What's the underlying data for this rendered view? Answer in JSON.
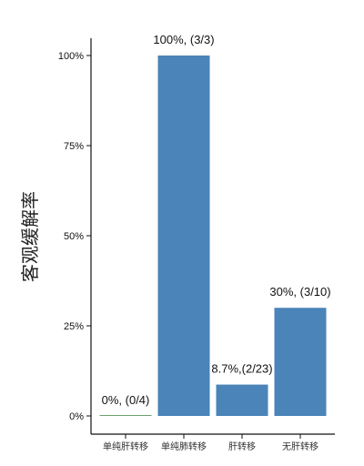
{
  "chart_data": {
    "type": "bar",
    "categories": [
      "单纯肝转移",
      "单纯肺转移",
      "肝转移",
      "无肝转移"
    ],
    "values": [
      0,
      100,
      8.7,
      30
    ],
    "data_labels": [
      "0%, (0/4)",
      "100%, (3/3)",
      "8.7%,(2/23)",
      "30%, (3/10)"
    ],
    "ylabel": "客观缓解率",
    "yticks": [
      "0%",
      "25%",
      "50%",
      "75%",
      "100%"
    ],
    "ytick_values": [
      0,
      25,
      50,
      75,
      100
    ],
    "ylim": [
      0,
      105
    ],
    "bar_color": "#4a84b8",
    "zero_bar_color": "#6aa06a",
    "grid": false
  }
}
